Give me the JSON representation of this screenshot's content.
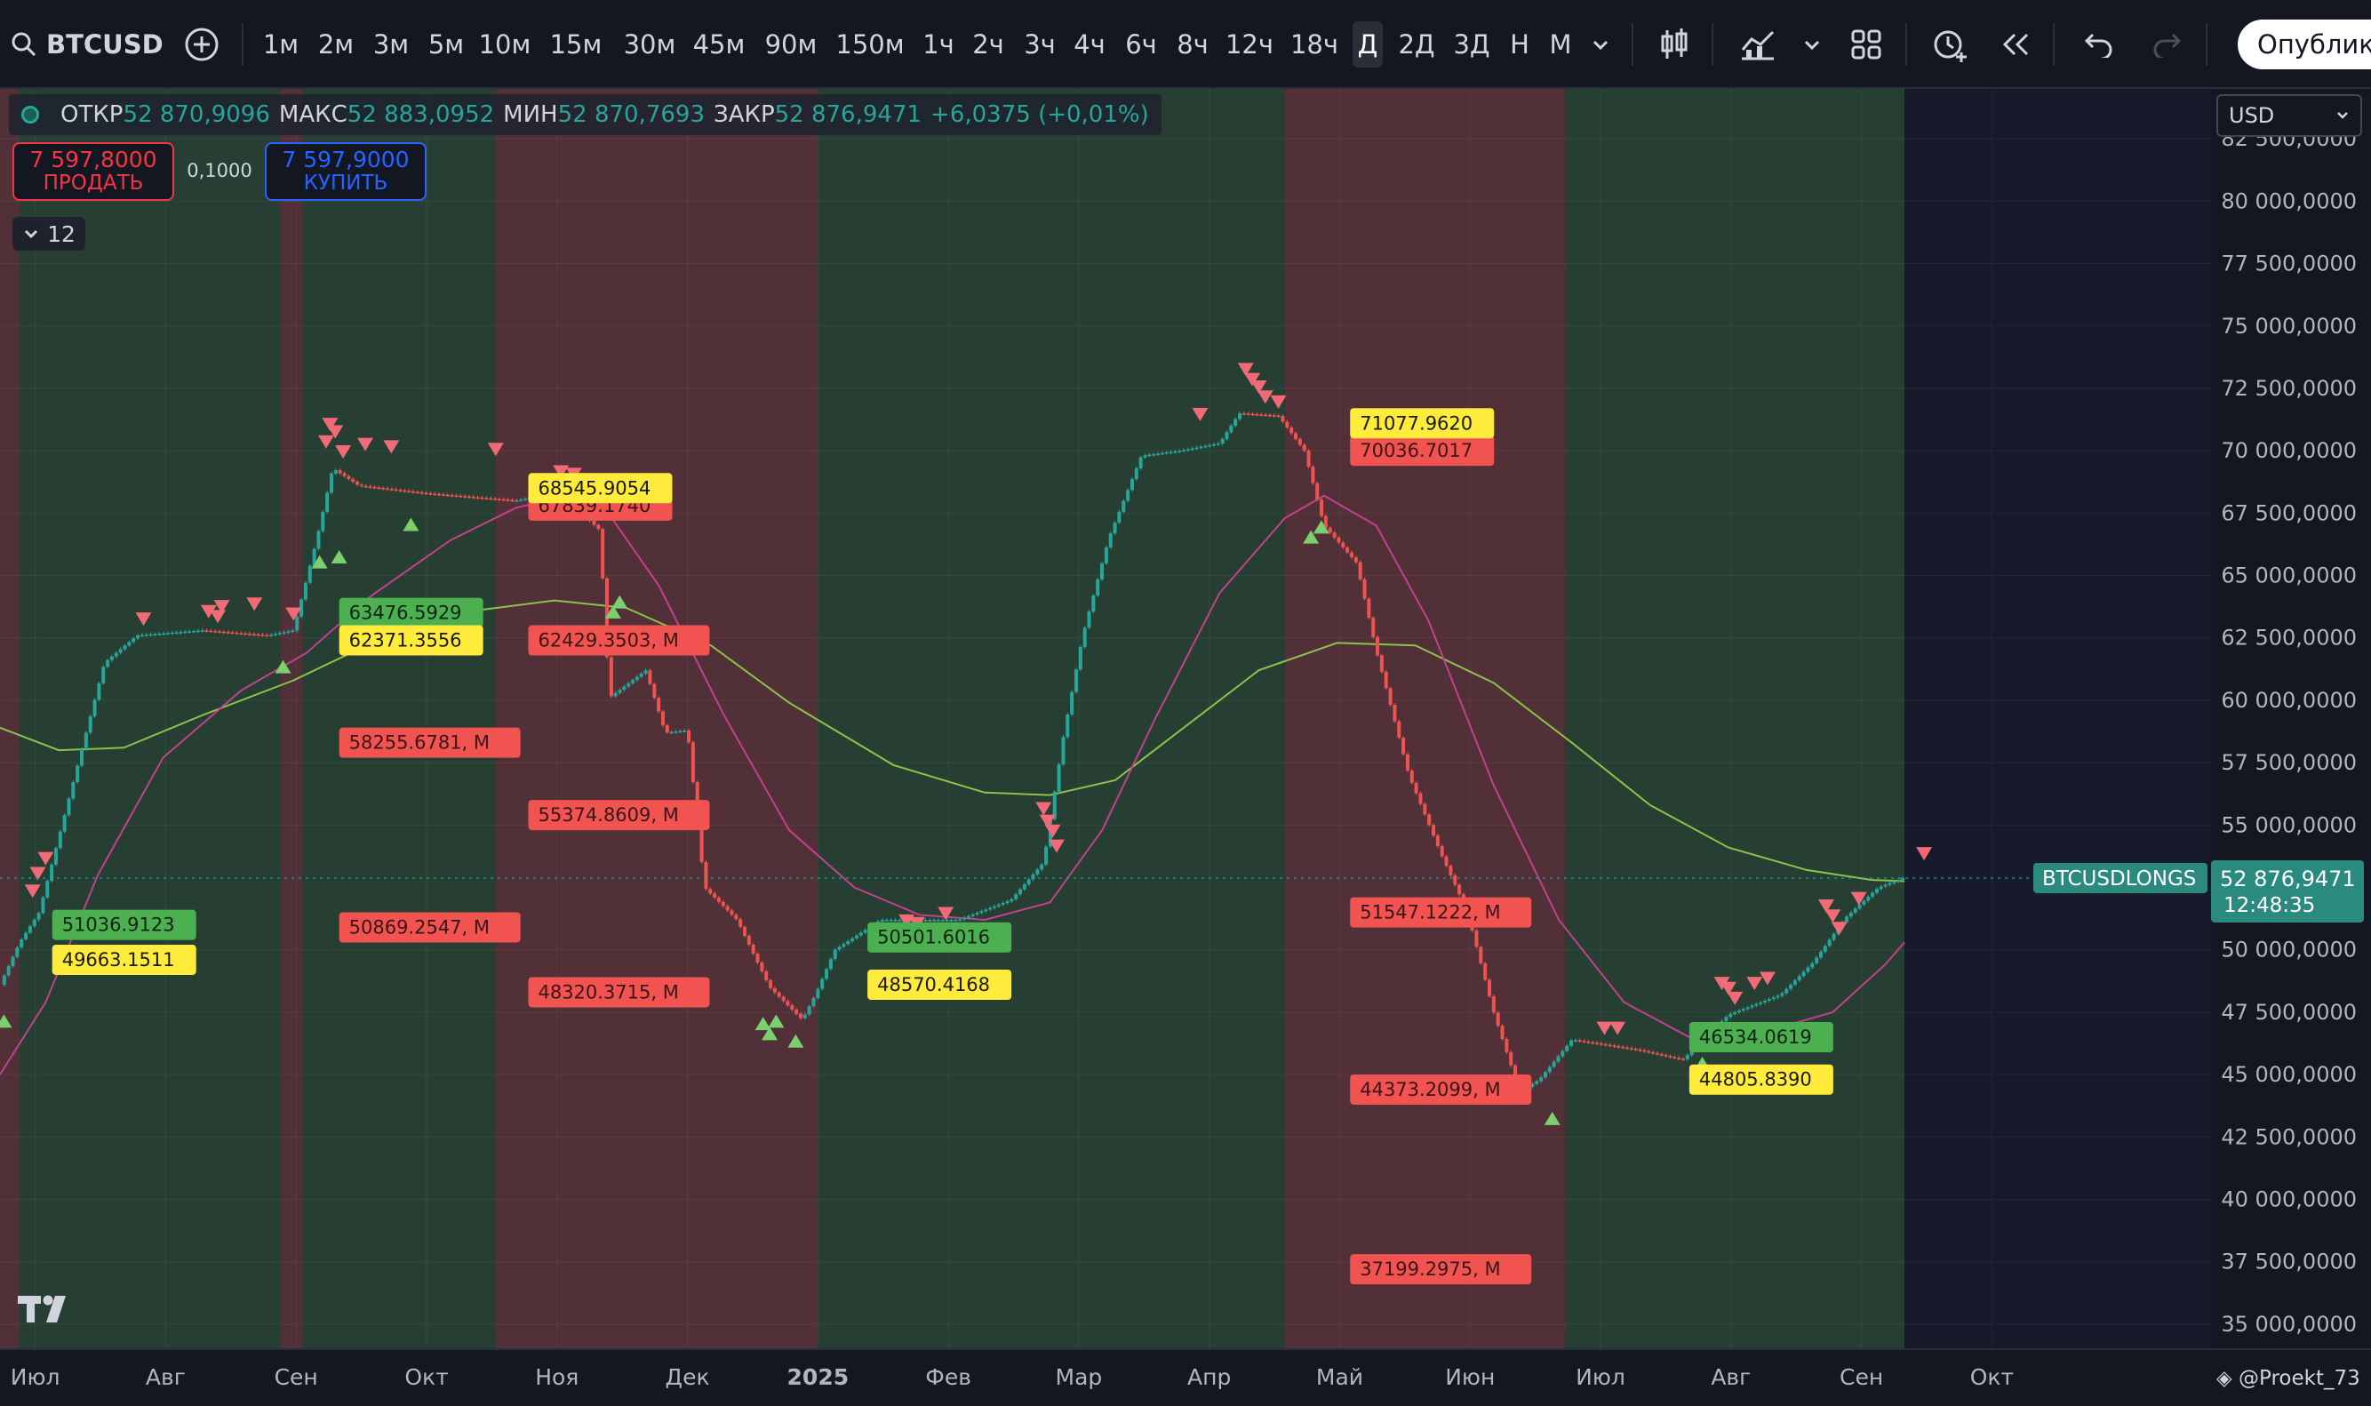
{
  "toolbar": {
    "symbol": "BTCUSD",
    "timeframes": [
      "1м",
      "2м",
      "3м",
      "5м",
      "10м",
      "15м",
      "30м",
      "45м",
      "90м",
      "150м",
      "1ч",
      "2ч",
      "3ч",
      "4ч",
      "6ч",
      "8ч",
      "12ч",
      "18ч",
      "Д",
      "2Д",
      "3Д",
      "Н",
      "М"
    ],
    "active_timeframe": "Д",
    "publish_label": "Опубликовать"
  },
  "legend": {
    "open_label": "ОТКР",
    "open": "52 870,9096",
    "high_label": "МАКС",
    "high": "52 883,0952",
    "low_label": "МИН",
    "low": "52 870,7693",
    "close_label": "ЗАКР",
    "close": "52 876,9471",
    "change": "+6,0375 (+0,01%)"
  },
  "trade": {
    "sell_price": "7 597,8000",
    "sell_label": "ПРОДАТЬ",
    "quantity": "0,1000",
    "buy_price": "7 597,9000",
    "buy_label": "КУПИТЬ"
  },
  "indicators_toggle": "12",
  "currency": "USD",
  "watermark": "@Proekt_73",
  "colors": {
    "background": "#131722",
    "green_zone": "#273f32",
    "red_zone": "#523037",
    "future_zone": "#161a2a",
    "candle_up": "#26a69a",
    "candle_down": "#ef5350",
    "ma_long": "#8bc34a",
    "ma_short": "#c2408f",
    "label_red": "#f05350",
    "label_yellow": "#ffeb3b",
    "label_green": "#4caf50",
    "price_tag": "#2b8a7e"
  },
  "chart_data": {
    "type": "candlestick",
    "x_axis": {
      "ticks": [
        {
          "t": 0.22,
          "label": "Июл"
        },
        {
          "t": 1.22,
          "label": "Авг"
        },
        {
          "t": 2.22,
          "label": "Сен"
        },
        {
          "t": 3.22,
          "label": "Окт"
        },
        {
          "t": 4.22,
          "label": "Ноя"
        },
        {
          "t": 5.22,
          "label": "Дек"
        },
        {
          "t": 6.22,
          "label": "2025"
        },
        {
          "t": 7.22,
          "label": "Фев"
        },
        {
          "t": 8.22,
          "label": "Мар"
        },
        {
          "t": 9.22,
          "label": "Апр"
        },
        {
          "t": 10.22,
          "label": "Май"
        },
        {
          "t": 11.22,
          "label": "Июн"
        },
        {
          "t": 12.22,
          "label": "Июл"
        },
        {
          "t": 13.22,
          "label": "Авг"
        },
        {
          "t": 14.22,
          "label": "Сен"
        },
        {
          "t": 15.22,
          "label": "Окт"
        }
      ],
      "range": [
        -0.05,
        16.9
      ]
    },
    "y_axis": {
      "range": [
        34000000,
        84500000
      ],
      "ticks": [
        {
          "v": 35000000,
          "label": "35 000,0000"
        },
        {
          "v": 37500000,
          "label": "37 500,0000"
        },
        {
          "v": 40000000,
          "label": "40 000,0000"
        },
        {
          "v": 42500000,
          "label": "42 500,0000"
        },
        {
          "v": 45000000,
          "label": "45 000,0000"
        },
        {
          "v": 47500000,
          "label": "47 500,0000"
        },
        {
          "v": 50000000,
          "label": "50 000,0000"
        },
        {
          "v": 55000000,
          "label": "55 000,0000"
        },
        {
          "v": 57500000,
          "label": "57 500,0000"
        },
        {
          "v": 60000000,
          "label": "60 000,0000"
        },
        {
          "v": 62500000,
          "label": "62 500,0000"
        },
        {
          "v": 65000000,
          "label": "65 000,0000"
        },
        {
          "v": 67500000,
          "label": "67 500,0000"
        },
        {
          "v": 70000000,
          "label": "70 000,0000"
        },
        {
          "v": 72500000,
          "label": "72 500,0000"
        },
        {
          "v": 75000000,
          "label": "75 000,0000"
        },
        {
          "v": 77500000,
          "label": "77 500,0000"
        },
        {
          "v": 80000000,
          "label": "80 000,0000"
        },
        {
          "v": 82500000,
          "label": "82 500,0000"
        }
      ]
    },
    "zones": [
      {
        "from": -0.05,
        "to": 0.1,
        "color": "red"
      },
      {
        "from": 0.1,
        "to": 2.1,
        "color": "green"
      },
      {
        "from": 2.1,
        "to": 2.27,
        "color": "red"
      },
      {
        "from": 2.27,
        "to": 3.75,
        "color": "green"
      },
      {
        "from": 3.75,
        "to": 6.22,
        "color": "red"
      },
      {
        "from": 6.22,
        "to": 9.8,
        "color": "green"
      },
      {
        "from": 9.8,
        "to": 11.95,
        "color": "red"
      },
      {
        "from": 11.95,
        "to": 14.55,
        "color": "green"
      },
      {
        "from": 14.55,
        "to": 16.9,
        "color": "future"
      }
    ],
    "price_path": [
      [
        -0.05,
        48.6
      ],
      [
        0.1,
        50.3
      ],
      [
        0.25,
        51.5
      ],
      [
        0.55,
        57.5
      ],
      [
        0.75,
        61.5
      ],
      [
        1.0,
        62.6
      ],
      [
        1.5,
        62.8
      ],
      [
        2.0,
        62.6
      ],
      [
        2.2,
        62.8
      ],
      [
        2.38,
        66.5
      ],
      [
        2.5,
        69.3
      ],
      [
        2.7,
        68.6
      ],
      [
        3.2,
        68.3
      ],
      [
        3.9,
        68.0
      ],
      [
        4.2,
        68.3
      ],
      [
        4.35,
        67.8
      ],
      [
        4.55,
        66.8
      ],
      [
        4.62,
        60.1
      ],
      [
        4.9,
        61.2
      ],
      [
        5.05,
        58.7
      ],
      [
        5.22,
        58.8
      ],
      [
        5.35,
        52.5
      ],
      [
        5.6,
        51.2
      ],
      [
        5.85,
        48.5
      ],
      [
        6.1,
        47.2
      ],
      [
        6.2,
        48.2
      ],
      [
        6.35,
        50.0
      ],
      [
        6.7,
        51.2
      ],
      [
        7.3,
        51.2
      ],
      [
        7.7,
        52.0
      ],
      [
        7.95,
        53.5
      ],
      [
        8.1,
        58.5
      ],
      [
        8.25,
        62.6
      ],
      [
        8.45,
        66.5
      ],
      [
        8.7,
        69.8
      ],
      [
        9.0,
        70.0
      ],
      [
        9.3,
        70.3
      ],
      [
        9.45,
        71.5
      ],
      [
        9.75,
        71.4
      ],
      [
        9.95,
        70.0
      ],
      [
        10.1,
        67.0
      ],
      [
        10.35,
        65.5
      ],
      [
        10.5,
        62.0
      ],
      [
        10.75,
        57.0
      ],
      [
        11.0,
        53.8
      ],
      [
        11.2,
        51.5
      ],
      [
        11.4,
        47.5
      ],
      [
        11.6,
        44.3
      ],
      [
        11.75,
        44.8
      ],
      [
        12.0,
        46.4
      ],
      [
        12.5,
        46.0
      ],
      [
        12.85,
        45.6
      ],
      [
        13.2,
        47.4
      ],
      [
        13.6,
        48.2
      ],
      [
        13.85,
        49.5
      ],
      [
        14.1,
        51.3
      ],
      [
        14.35,
        52.5
      ],
      [
        14.55,
        52.9
      ]
    ],
    "ma_long": [
      [
        -0.05,
        58.9
      ],
      [
        0.4,
        58.0
      ],
      [
        0.9,
        58.1
      ],
      [
        1.5,
        59.4
      ],
      [
        2.2,
        60.8
      ],
      [
        2.8,
        62.3
      ],
      [
        3.6,
        63.6
      ],
      [
        4.2,
        64.0
      ],
      [
        4.75,
        63.7
      ],
      [
        5.4,
        62.2
      ],
      [
        6.0,
        59.9
      ],
      [
        6.8,
        57.4
      ],
      [
        7.5,
        56.3
      ],
      [
        8.0,
        56.2
      ],
      [
        8.5,
        56.8
      ],
      [
        9.0,
        58.8
      ],
      [
        9.6,
        61.2
      ],
      [
        10.2,
        62.3
      ],
      [
        10.8,
        62.2
      ],
      [
        11.4,
        60.7
      ],
      [
        12.0,
        58.3
      ],
      [
        12.6,
        55.8
      ],
      [
        13.2,
        54.1
      ],
      [
        13.8,
        53.2
      ],
      [
        14.3,
        52.8
      ],
      [
        14.55,
        52.75
      ]
    ],
    "ma_short": [
      [
        -0.05,
        45.0
      ],
      [
        0.3,
        47.9
      ],
      [
        0.7,
        53.0
      ],
      [
        1.2,
        57.7
      ],
      [
        1.8,
        60.4
      ],
      [
        2.3,
        61.9
      ],
      [
        2.8,
        64.2
      ],
      [
        3.4,
        66.4
      ],
      [
        3.9,
        67.7
      ],
      [
        4.3,
        68.2
      ],
      [
        4.6,
        67.6
      ],
      [
        5.0,
        64.6
      ],
      [
        5.5,
        59.4
      ],
      [
        6.0,
        54.8
      ],
      [
        6.5,
        52.5
      ],
      [
        7.0,
        51.4
      ],
      [
        7.5,
        51.2
      ],
      [
        8.0,
        51.9
      ],
      [
        8.4,
        54.8
      ],
      [
        8.8,
        59.2
      ],
      [
        9.3,
        64.3
      ],
      [
        9.8,
        67.3
      ],
      [
        10.1,
        68.2
      ],
      [
        10.5,
        67.0
      ],
      [
        10.9,
        63.2
      ],
      [
        11.4,
        56.6
      ],
      [
        11.9,
        51.2
      ],
      [
        12.4,
        47.9
      ],
      [
        12.9,
        46.5
      ],
      [
        13.2,
        46.2
      ],
      [
        13.6,
        46.9
      ],
      [
        14.0,
        47.5
      ],
      [
        14.4,
        49.4
      ],
      [
        14.55,
        50.3
      ]
    ],
    "down_markers": [
      [
        0.2,
        51.8
      ],
      [
        0.24,
        52.5
      ],
      [
        0.3,
        53.1
      ],
      [
        1.05,
        62.7
      ],
      [
        1.55,
        63.0
      ],
      [
        1.62,
        62.8
      ],
      [
        1.65,
        63.2
      ],
      [
        1.9,
        63.3
      ],
      [
        2.2,
        62.9
      ],
      [
        2.45,
        69.8
      ],
      [
        2.48,
        70.5
      ],
      [
        2.52,
        70.2
      ],
      [
        2.58,
        69.4
      ],
      [
        2.75,
        69.7
      ],
      [
        2.95,
        69.6
      ],
      [
        3.75,
        69.5
      ],
      [
        4.25,
        68.6
      ],
      [
        4.35,
        68.5
      ],
      [
        6.9,
        50.6
      ],
      [
        6.98,
        50.5
      ],
      [
        7.2,
        50.9
      ],
      [
        7.95,
        55.1
      ],
      [
        7.98,
        54.6
      ],
      [
        8.02,
        54.2
      ],
      [
        8.05,
        53.6
      ],
      [
        9.15,
        70.9
      ],
      [
        9.5,
        72.7
      ],
      [
        9.55,
        72.3
      ],
      [
        9.6,
        72.0
      ],
      [
        9.65,
        71.6
      ],
      [
        9.75,
        71.4
      ],
      [
        12.25,
        46.3
      ],
      [
        12.35,
        46.3
      ],
      [
        13.15,
        48.1
      ],
      [
        13.2,
        47.9
      ],
      [
        13.25,
        47.5
      ],
      [
        13.4,
        48.1
      ],
      [
        13.5,
        48.3
      ],
      [
        13.95,
        51.2
      ],
      [
        14.0,
        50.8
      ],
      [
        14.05,
        50.3
      ],
      [
        14.2,
        51.5
      ],
      [
        14.7,
        53.3
      ]
    ],
    "up_markers": [
      [
        -0.02,
        47.7
      ],
      [
        2.12,
        61.9
      ],
      [
        2.4,
        66.1
      ],
      [
        2.55,
        66.3
      ],
      [
        3.1,
        67.6
      ],
      [
        4.65,
        64.1
      ],
      [
        4.7,
        64.5
      ],
      [
        5.8,
        47.6
      ],
      [
        5.85,
        47.2
      ],
      [
        5.9,
        47.7
      ],
      [
        6.05,
        46.9
      ],
      [
        10.0,
        67.1
      ],
      [
        10.08,
        67.5
      ],
      [
        11.85,
        43.8
      ],
      [
        13.0,
        46.0
      ]
    ],
    "labels": [
      {
        "t": 0.35,
        "v": 51.0,
        "text": "51036.9123",
        "style": "green"
      },
      {
        "t": 0.35,
        "v": 49.6,
        "text": "49663.1511",
        "style": "yellow"
      },
      {
        "t": 2.55,
        "v": 58.3,
        "text": "58255.6781, M",
        "style": "red"
      },
      {
        "t": 2.55,
        "v": 50.9,
        "text": "50869.2547, M",
        "style": "red"
      },
      {
        "t": 2.55,
        "v": 63.5,
        "text": "63476.5929",
        "style": "green"
      },
      {
        "t": 2.55,
        "v": 62.4,
        "text": "62371.3556",
        "style": "yellow"
      },
      {
        "t": 4.0,
        "v": 67.8,
        "text": "67839.1740",
        "style": "red"
      },
      {
        "t": 4.0,
        "v": 68.5,
        "text": "68545.9054",
        "style": "yellow"
      },
      {
        "t": 4.0,
        "v": 62.4,
        "text": "62429.3503, M",
        "style": "red"
      },
      {
        "t": 4.0,
        "v": 55.4,
        "text": "55374.8609, M",
        "style": "red"
      },
      {
        "t": 4.0,
        "v": 48.3,
        "text": "48320.3715, M",
        "style": "red"
      },
      {
        "t": 6.6,
        "v": 50.5,
        "text": "50501.6016",
        "style": "green"
      },
      {
        "t": 6.6,
        "v": 48.6,
        "text": "48570.4168",
        "style": "yellow"
      },
      {
        "t": 10.3,
        "v": 70.0,
        "text": "70036.7017",
        "style": "red"
      },
      {
        "t": 10.3,
        "v": 71.1,
        "text": "71077.9620",
        "style": "yellow"
      },
      {
        "t": 10.3,
        "v": 51.5,
        "text": "51547.1222, M",
        "style": "red"
      },
      {
        "t": 10.3,
        "v": 44.4,
        "text": "44373.2099, M",
        "style": "red"
      },
      {
        "t": 10.3,
        "v": 37.2,
        "text": "37199.2975, M",
        "style": "red"
      },
      {
        "t": 12.9,
        "v": 46.5,
        "text": "46534.0619",
        "style": "green"
      },
      {
        "t": 12.9,
        "v": 44.8,
        "text": "44805.8390",
        "style": "yellow"
      }
    ],
    "last_price": {
      "value": 52.877,
      "display": "52 876,9471",
      "countdown": "12:48:35",
      "series_name": "BTCUSDLONGS"
    }
  }
}
